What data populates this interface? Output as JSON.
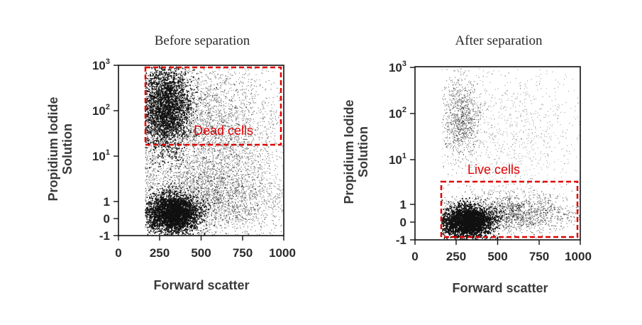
{
  "chart_data": [
    {
      "type": "scatter",
      "title": "Before separation",
      "xlabel": "Forward scatter",
      "ylabel_lines": [
        "Propidium Iodide",
        "Solution"
      ],
      "xlim": [
        0,
        1000
      ],
      "x_ticks": [
        "0",
        "250",
        "500",
        "750",
        "1000"
      ],
      "y_ticks": [
        {
          "base": "-1",
          "sup": ""
        },
        {
          "base": "0",
          "sup": ""
        },
        {
          "base": "1",
          "sup": ""
        },
        {
          "base": "10",
          "sup": "1"
        },
        {
          "base": "10",
          "sup": "2"
        },
        {
          "base": "10",
          "sup": "3"
        }
      ],
      "gate": {
        "label": "Dead cells",
        "x_range": [
          165,
          1000
        ],
        "y_range": [
          "10^1 (approx 20)",
          "10^3"
        ]
      },
      "populations": [
        {
          "name": "live cluster",
          "x_center": 330,
          "y_center": "0",
          "relative_density": "high"
        },
        {
          "name": "dead cluster",
          "x_center": 290,
          "y_center": "10^2",
          "relative_density": "high"
        },
        {
          "name": "background",
          "relative_density": "medium"
        }
      ]
    },
    {
      "type": "scatter",
      "title": "After separation",
      "xlabel": "Forward scatter",
      "ylabel_lines": [
        "Propidium Iodide",
        "Solution"
      ],
      "xlim": [
        0,
        1000
      ],
      "x_ticks": [
        "0",
        "250",
        "500",
        "750",
        "1000"
      ],
      "y_ticks": [
        {
          "base": "-1",
          "sup": ""
        },
        {
          "base": "0",
          "sup": ""
        },
        {
          "base": "1",
          "sup": ""
        },
        {
          "base": "10",
          "sup": "1"
        },
        {
          "base": "10",
          "sup": "2"
        },
        {
          "base": "10",
          "sup": "3"
        }
      ],
      "gate": {
        "label": "Live cells",
        "x_range": [
          165,
          1000
        ],
        "y_range": [
          "-1",
          "approx 3"
        ]
      },
      "populations": [
        {
          "name": "live cluster",
          "x_center": 320,
          "y_center": "0",
          "relative_density": "very high"
        },
        {
          "name": "dead cluster",
          "x_center": 280,
          "y_center": "10^2",
          "relative_density": "low"
        },
        {
          "name": "background",
          "relative_density": "low"
        }
      ]
    }
  ],
  "colors": {
    "gate": "#e00000",
    "points": "#111111"
  }
}
